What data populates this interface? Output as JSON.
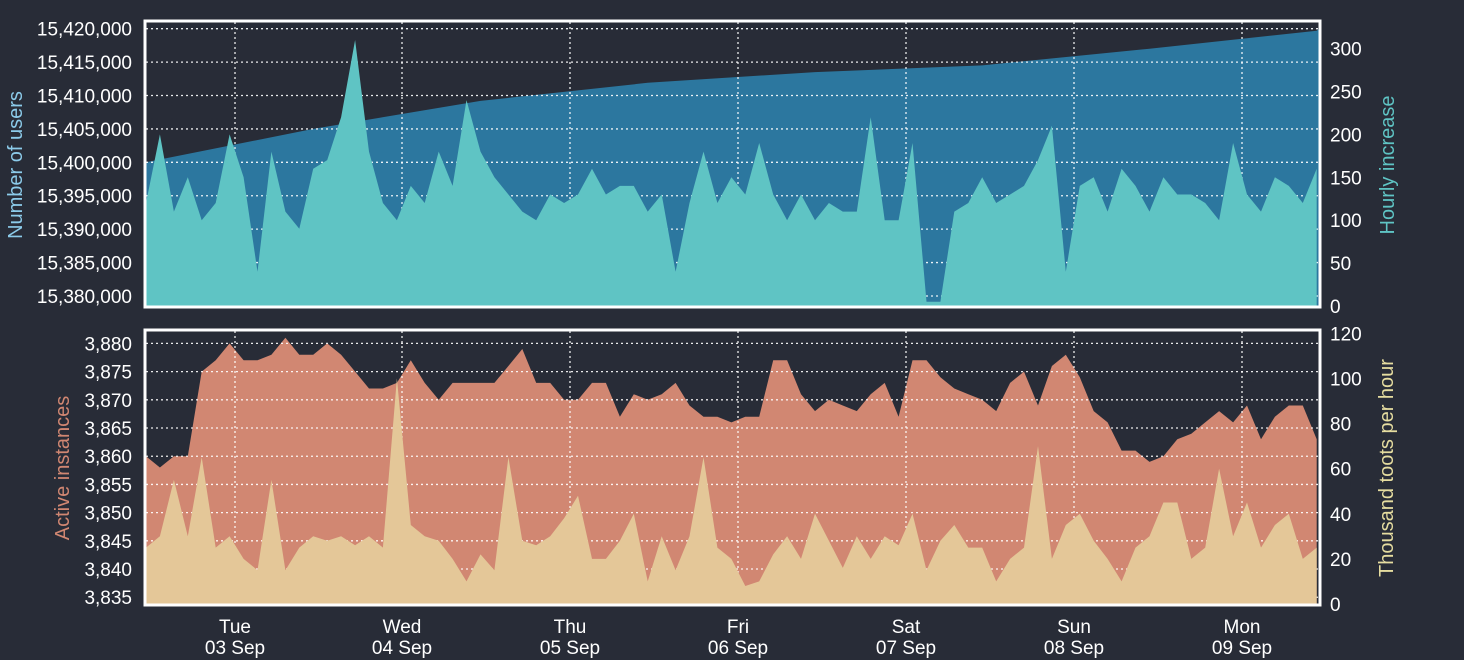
{
  "colors": {
    "background": "#282c37",
    "users_area": "#2c779f",
    "hourly_area": "#5fc4c4",
    "instances_area": "#d18772",
    "toots_area": "#e4c798",
    "users_label": "#8ccbea",
    "hourly_label": "#5fc4c4",
    "instances_label": "#d18772",
    "toots_label": "#e6dda0",
    "grid": "#ffffff"
  },
  "chart_data": [
    {
      "type": "area",
      "series": [
        {
          "name": "Number of users",
          "axis": "left",
          "x": [
            0,
            24,
            48,
            72,
            96,
            120,
            144,
            168,
            168.33
          ],
          "values": [
            15400000,
            15405000,
            15409200,
            15411900,
            15413500,
            15414500,
            15417000,
            15419700,
            15420000
          ]
        },
        {
          "name": "Hourly increase",
          "axis": "right",
          "x": [
            0,
            2,
            4,
            6,
            8,
            10,
            12,
            14,
            16,
            18,
            20,
            22,
            24,
            26,
            28,
            30,
            32,
            34,
            36,
            38,
            40,
            42,
            44,
            46,
            48,
            50,
            52,
            54,
            56,
            58,
            60,
            62,
            64,
            66,
            68,
            70,
            72,
            74,
            76,
            78,
            80,
            82,
            84,
            86,
            88,
            90,
            92,
            94,
            96,
            98,
            100,
            102,
            104,
            106,
            108,
            110,
            112,
            114,
            116,
            118,
            120,
            122,
            124,
            126,
            128,
            130,
            132,
            134,
            136,
            138,
            140,
            142,
            144,
            146,
            148,
            150,
            152,
            154,
            156,
            158,
            160,
            162,
            164,
            166,
            168
          ],
          "values": [
            120,
            200,
            110,
            150,
            100,
            120,
            200,
            150,
            40,
            180,
            110,
            90,
            160,
            170,
            220,
            310,
            180,
            120,
            100,
            140,
            120,
            180,
            140,
            240,
            180,
            150,
            130,
            110,
            100,
            130,
            120,
            130,
            160,
            130,
            140,
            140,
            110,
            130,
            40,
            120,
            180,
            120,
            150,
            130,
            190,
            130,
            100,
            130,
            100,
            120,
            110,
            110,
            220,
            100,
            100,
            190,
            5,
            5,
            110,
            120,
            150,
            120,
            130,
            140,
            170,
            210,
            40,
            140,
            150,
            110,
            160,
            140,
            110,
            150,
            130,
            130,
            120,
            100,
            190,
            130,
            110,
            150,
            140,
            120,
            160
          ]
        }
      ],
      "y_left_label": "Number of users",
      "y_right_label": "Hourly increase",
      "y_left_ticks": [
        "15,420,000",
        "15,415,000",
        "15,410,000",
        "15,405,000",
        "15,400,000",
        "15,395,000",
        "15,390,000",
        "15,385,000",
        "15,380,000"
      ],
      "y_right_ticks": [
        "300",
        "250",
        "200",
        "150",
        "100",
        "50",
        "0"
      ],
      "ylim_left": [
        15378500,
        15421000
      ],
      "ylim_right": [
        0,
        331
      ],
      "grid": true
    },
    {
      "type": "area",
      "series": [
        {
          "name": "Active instances",
          "axis": "left",
          "x": [
            0,
            2,
            4,
            6,
            8,
            10,
            12,
            14,
            16,
            18,
            20,
            22,
            24,
            26,
            28,
            30,
            32,
            34,
            36,
            38,
            40,
            42,
            44,
            46,
            48,
            50,
            52,
            54,
            56,
            58,
            60,
            62,
            64,
            66,
            68,
            70,
            72,
            74,
            76,
            78,
            80,
            82,
            84,
            86,
            88,
            90,
            92,
            94,
            96,
            98,
            100,
            102,
            104,
            106,
            108,
            110,
            112,
            114,
            116,
            118,
            120,
            122,
            124,
            126,
            128,
            130,
            132,
            134,
            136,
            138,
            140,
            142,
            144,
            146,
            148,
            150,
            152,
            154,
            156,
            158,
            160,
            162,
            164,
            166,
            168
          ],
          "values": [
            3860,
            3858,
            3860,
            3860,
            3875,
            3877,
            3880,
            3877,
            3877,
            3878,
            3881,
            3878,
            3878,
            3880,
            3878,
            3875,
            3872,
            3872,
            3873,
            3877,
            3873,
            3870,
            3873,
            3873,
            3873,
            3873,
            3876,
            3879,
            3873,
            3873,
            3870,
            3870,
            3873,
            3873,
            3867,
            3871,
            3870,
            3871,
            3873,
            3869,
            3867,
            3867,
            3866,
            3867,
            3867,
            3877,
            3877,
            3871,
            3868,
            3870,
            3869,
            3868,
            3871,
            3873,
            3867,
            3877,
            3877,
            3874,
            3872,
            3871,
            3870,
            3868,
            3873,
            3875,
            3869,
            3876,
            3878,
            3874,
            3868,
            3866,
            3861,
            3861,
            3859,
            3860,
            3863,
            3864,
            3866,
            3868,
            3866,
            3869,
            3863,
            3867,
            3869,
            3869,
            3863
          ],
          "y_extra_note": null
        },
        {
          "name": "Thousand toots per hour",
          "axis": "right",
          "x": [
            0,
            2,
            4,
            6,
            8,
            10,
            12,
            14,
            16,
            18,
            20,
            22,
            24,
            26,
            28,
            30,
            32,
            34,
            36,
            38,
            40,
            42,
            44,
            46,
            48,
            50,
            52,
            54,
            56,
            58,
            60,
            62,
            64,
            66,
            68,
            70,
            72,
            74,
            76,
            78,
            80,
            82,
            84,
            86,
            88,
            90,
            92,
            94,
            96,
            98,
            100,
            102,
            104,
            106,
            108,
            110,
            112,
            114,
            116,
            118,
            120,
            122,
            124,
            126,
            128,
            130,
            132,
            134,
            136,
            138,
            140,
            142,
            144,
            146,
            148,
            150,
            152,
            154,
            156,
            158,
            160,
            162,
            164,
            166,
            168
          ],
          "values": [
            25,
            30,
            55,
            30,
            65,
            25,
            30,
            20,
            15,
            55,
            15,
            25,
            30,
            28,
            30,
            26,
            30,
            25,
            100,
            35,
            30,
            28,
            20,
            10,
            22,
            15,
            65,
            28,
            26,
            30,
            38,
            48,
            20,
            20,
            28,
            40,
            10,
            30,
            15,
            30,
            65,
            25,
            20,
            8,
            10,
            22,
            30,
            20,
            40,
            28,
            16,
            30,
            20,
            30,
            26,
            40,
            15,
            28,
            35,
            25,
            25,
            10,
            20,
            25,
            70,
            20,
            35,
            40,
            28,
            20,
            10,
            25,
            30,
            45,
            45,
            20,
            25,
            60,
            30,
            45,
            25,
            35,
            40,
            20,
            25
          ]
        }
      ],
      "y_left_label": "Active instances",
      "y_right_label": "Thousand toots per hour",
      "y_left_ticks": [
        "3,880",
        "3,875",
        "3,870",
        "3,865",
        "3,860",
        "3,855",
        "3,850",
        "3,845",
        "3,840",
        "3,835"
      ],
      "y_right_ticks": [
        "120",
        "100",
        "80",
        "60",
        "40",
        "20",
        "0"
      ],
      "ylim_left": [
        3833.8,
        3882.2
      ],
      "ylim_right": [
        0,
        121
      ],
      "grid": true
    }
  ],
  "x_axis": {
    "ticks": [
      {
        "day": "Tue",
        "date": "03 Sep"
      },
      {
        "day": "Wed",
        "date": "04 Sep"
      },
      {
        "day": "Thu",
        "date": "05 Sep"
      },
      {
        "day": "Fri",
        "date": "06 Sep"
      },
      {
        "day": "Sat",
        "date": "07 Sep"
      },
      {
        "day": "Sun",
        "date": "08 Sep"
      },
      {
        "day": "Mon",
        "date": "09 Sep"
      }
    ]
  }
}
